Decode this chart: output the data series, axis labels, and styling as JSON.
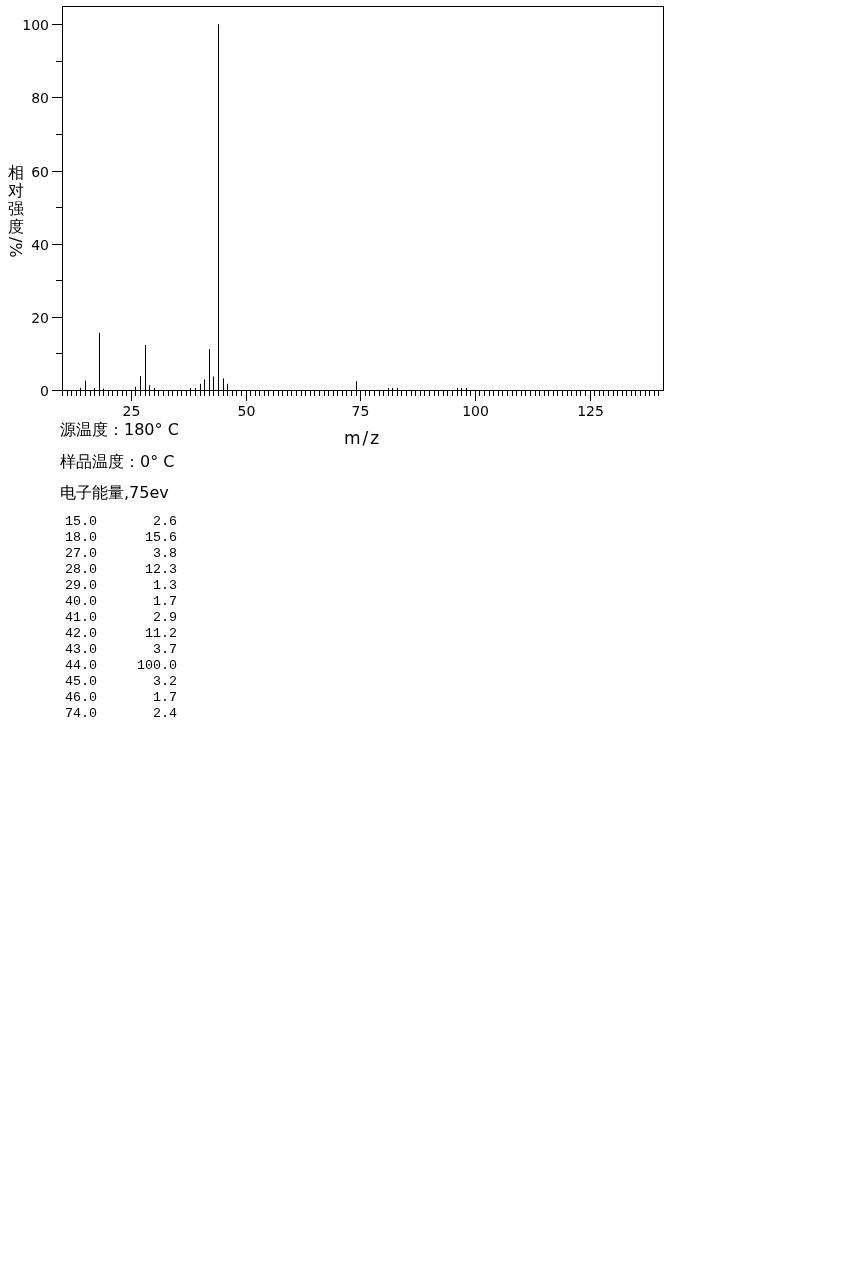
{
  "chart_data": [
    {
      "type": "bar",
      "xlabel": "m/z",
      "ylabel": "相对强度/%",
      "annotations": [
        "源温度：180° C",
        "样品温度：0° C",
        "电子能量,75ev"
      ],
      "x": [
        14,
        15,
        17,
        18,
        19,
        26,
        27,
        28,
        29,
        30,
        38,
        39,
        40,
        41,
        42,
        43,
        44,
        45,
        46,
        74,
        81,
        82,
        83,
        96,
        97,
        98
      ],
      "values": [
        0.6,
        2.6,
        0.6,
        15.6,
        0.4,
        0.9,
        3.8,
        12.3,
        1.3,
        0.6,
        0.6,
        0.6,
        1.7,
        2.9,
        11.2,
        3.7,
        100,
        3.2,
        1.7,
        2.4,
        0.6,
        0.6,
        0.6,
        0.6,
        0.6,
        0.6
      ],
      "color": "#000000",
      "xlim": [
        10,
        141
      ],
      "ylim": [
        0,
        105
      ],
      "xticks": [
        {
          "value": 10,
          "label": null
        },
        {
          "value": 11,
          "label": null
        },
        {
          "value": 12,
          "label": null
        },
        {
          "value": 13,
          "label": null
        },
        {
          "value": 14,
          "label": null
        },
        {
          "value": 15,
          "label": null
        },
        {
          "value": 16,
          "label": null
        },
        {
          "value": 17,
          "label": null
        },
        {
          "value": 18,
          "label": null
        },
        {
          "value": 19,
          "label": null
        },
        {
          "value": 20,
          "label": null
        },
        {
          "value": 21,
          "label": null
        },
        {
          "value": 22,
          "label": null
        },
        {
          "value": 23,
          "label": null
        },
        {
          "value": 24,
          "label": null
        },
        25,
        {
          "value": 26,
          "label": null
        },
        {
          "value": 27,
          "label": null
        },
        {
          "value": 28,
          "label": null
        },
        {
          "value": 29,
          "label": null
        },
        {
          "value": 30,
          "label": null
        },
        {
          "value": 31,
          "label": null
        },
        {
          "value": 32,
          "label": null
        },
        {
          "value": 33,
          "label": null
        },
        {
          "value": 34,
          "label": null
        },
        {
          "value": 35,
          "label": null
        },
        {
          "value": 36,
          "label": null
        },
        {
          "value": 37,
          "label": null
        },
        {
          "value": 38,
          "label": null
        },
        {
          "value": 39,
          "label": null
        },
        {
          "value": 40,
          "label": null
        },
        {
          "value": 41,
          "label": null
        },
        {
          "value": 42,
          "label": null
        },
        {
          "value": 43,
          "label": null
        },
        {
          "value": 44,
          "label": null
        },
        {
          "value": 45,
          "label": null
        },
        {
          "value": 46,
          "label": null
        },
        {
          "value": 47,
          "label": null
        },
        {
          "value": 48,
          "label": null
        },
        {
          "value": 49,
          "label": null
        },
        50,
        {
          "value": 51,
          "label": null
        },
        {
          "value": 52,
          "label": null
        },
        {
          "value": 53,
          "label": null
        },
        {
          "value": 54,
          "label": null
        },
        {
          "value": 55,
          "label": null
        },
        {
          "value": 56,
          "label": null
        },
        {
          "value": 57,
          "label": null
        },
        {
          "value": 58,
          "label": null
        },
        {
          "value": 59,
          "label": null
        },
        {
          "value": 60,
          "label": null
        },
        {
          "value": 61,
          "label": null
        },
        {
          "value": 62,
          "label": null
        },
        {
          "value": 63,
          "label": null
        },
        {
          "value": 64,
          "label": null
        },
        {
          "value": 65,
          "label": null
        },
        {
          "value": 66,
          "label": null
        },
        {
          "value": 67,
          "label": null
        },
        {
          "value": 68,
          "label": null
        },
        {
          "value": 69,
          "label": null
        },
        {
          "value": 70,
          "label": null
        },
        {
          "value": 71,
          "label": null
        },
        {
          "value": 72,
          "label": null
        },
        {
          "value": 73,
          "label": null
        },
        {
          "value": 74,
          "label": null
        },
        75,
        {
          "value": 76,
          "label": null
        },
        {
          "value": 77,
          "label": null
        },
        {
          "value": 78,
          "label": null
        },
        {
          "value": 79,
          "label": null
        },
        {
          "value": 80,
          "label": null
        },
        {
          "value": 81,
          "label": null
        },
        {
          "value": 82,
          "label": null
        },
        {
          "value": 83,
          "label": null
        },
        {
          "value": 84,
          "label": null
        },
        {
          "value": 85,
          "label": null
        },
        {
          "value": 86,
          "label": null
        },
        {
          "value": 87,
          "label": null
        },
        {
          "value": 88,
          "label": null
        },
        {
          "value": 89,
          "label": null
        },
        {
          "value": 90,
          "label": null
        },
        {
          "value": 91,
          "label": null
        },
        {
          "value": 92,
          "label": null
        },
        {
          "value": 93,
          "label": null
        },
        {
          "value": 94,
          "label": null
        },
        {
          "value": 95,
          "label": null
        },
        {
          "value": 96,
          "label": null
        },
        {
          "value": 97,
          "label": null
        },
        {
          "value": 98,
          "label": null
        },
        {
          "value": 99,
          "label": null
        },
        100,
        {
          "value": 101,
          "label": null
        },
        {
          "value": 102,
          "label": null
        },
        {
          "value": 103,
          "label": null
        },
        {
          "value": 104,
          "label": null
        },
        {
          "value": 105,
          "label": null
        },
        {
          "value": 106,
          "label": null
        },
        {
          "value": 107,
          "label": null
        },
        {
          "value": 108,
          "label": null
        },
        {
          "value": 109,
          "label": null
        },
        {
          "value": 110,
          "label": null
        },
        {
          "value": 111,
          "label": null
        },
        {
          "value": 112,
          "label": null
        },
        {
          "value": 113,
          "label": null
        },
        {
          "value": 114,
          "label": null
        },
        {
          "value": 115,
          "label": null
        },
        {
          "value": 116,
          "label": null
        },
        {
          "value": 117,
          "label": null
        },
        {
          "value": 118,
          "label": null
        },
        {
          "value": 119,
          "label": null
        },
        {
          "value": 120,
          "label": null
        },
        {
          "value": 121,
          "label": null
        },
        {
          "value": 122,
          "label": null
        },
        {
          "value": 123,
          "label": null
        },
        {
          "value": 124,
          "label": null
        },
        125,
        {
          "value": 126,
          "label": null
        },
        {
          "value": 127,
          "label": null
        },
        {
          "value": 128,
          "label": null
        },
        {
          "value": 129,
          "label": null
        },
        {
          "value": 130,
          "label": null
        },
        {
          "value": 131,
          "label": null
        },
        {
          "value": 132,
          "label": null
        },
        {
          "value": 133,
          "label": null
        },
        {
          "value": 134,
          "label": null
        },
        {
          "value": 135,
          "label": null
        },
        {
          "value": 136,
          "label": null
        },
        {
          "value": 137,
          "label": null
        },
        {
          "value": 138,
          "label": null
        },
        {
          "value": 139,
          "label": null
        },
        {
          "value": 140,
          "label": null
        }
      ],
      "yticks": [
        0,
        {
          "value": 10,
          "label": null
        },
        20,
        {
          "value": 30,
          "label": null
        },
        40,
        {
          "value": 50,
          "label": null
        },
        60,
        {
          "value": 70,
          "label": null
        },
        80,
        {
          "value": 90,
          "label": null
        },
        100
      ]
    },
    {
      "type": "other",
      "annotations": [
        "15.0       2.6",
        "18.0      15.6",
        "27.0       3.8",
        "28.0      12.3",
        "29.0       1.3",
        "40.0       1.7",
        "41.0       2.9",
        "42.0      11.2",
        "43.0       3.7",
        "44.0     100.0",
        "45.0       3.2",
        "46.0       1.7",
        "74.0       2.4"
      ]
    }
  ]
}
